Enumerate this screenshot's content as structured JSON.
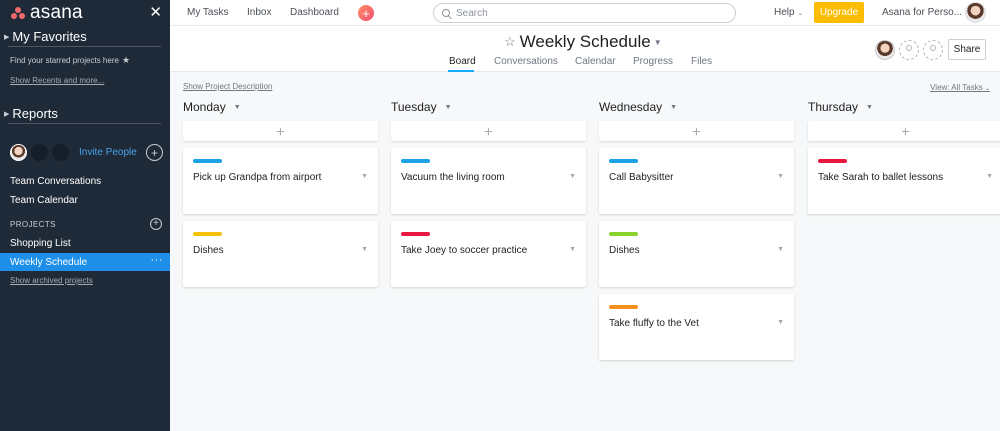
{
  "sidebar": {
    "logo": "asana",
    "favorites_title": "My Favorites",
    "favorites_hint": "Find your starred projects here",
    "show_recents": "Show Recents and more...",
    "reports_title": "Reports",
    "invite_label": "Invite People",
    "team_items": [
      "Team Conversations",
      "Team Calendar"
    ],
    "projects_label": "PROJECTS",
    "projects": [
      "Shopping List",
      "Weekly Schedule"
    ],
    "more_label": "···",
    "show_archived": "Show archived projects"
  },
  "topbar": {
    "nav": [
      "My Tasks",
      "Inbox",
      "Dashboard"
    ],
    "search_placeholder": "Search",
    "help_label": "Help",
    "upgrade_label": "Upgrade",
    "org_label": "Asana for Perso..."
  },
  "project": {
    "title": "Weekly Schedule",
    "tabs": [
      "Board",
      "Conversations",
      "Calendar",
      "Progress",
      "Files"
    ],
    "active_tab": "Board",
    "share_label": "Share"
  },
  "board": {
    "show_description": "Show Project Description",
    "view_filter": "View: All Tasks",
    "columns": [
      {
        "title": "Monday",
        "cards": [
          {
            "title": "Pick up Grandpa from airport",
            "tag_color": "#1aa1e6"
          },
          {
            "title": "Dishes",
            "tag_color": "#f6c10d"
          }
        ]
      },
      {
        "title": "Tuesday",
        "cards": [
          {
            "title": "Vacuum the living room",
            "tag_color": "#1aa1e6"
          },
          {
            "title": "Take Joey to soccer practice",
            "tag_color": "#e8173f"
          }
        ]
      },
      {
        "title": "Wednesday",
        "cards": [
          {
            "title": "Call Babysitter",
            "tag_color": "#1aa1e6"
          },
          {
            "title": "Dishes",
            "tag_color": "#8bd12e"
          },
          {
            "title": "Take fluffy to the Vet",
            "tag_color": "#f6911f"
          }
        ]
      },
      {
        "title": "Thursday",
        "cards": [
          {
            "title": "Take Sarah to ballet lessons",
            "tag_color": "#e8173f"
          }
        ]
      }
    ]
  },
  "colors": {
    "sidebar_bg": "#1f2a38",
    "active_item": "#1d8fe8",
    "upgrade": "#fcbd01",
    "tab_accent": "#14aaf5"
  },
  "icons": [
    "asana-logo-icon",
    "close-icon",
    "star-icon",
    "plus-icon",
    "search-icon",
    "chevron-down-icon",
    "more-icon",
    "avatar-placeholder-icon"
  ]
}
